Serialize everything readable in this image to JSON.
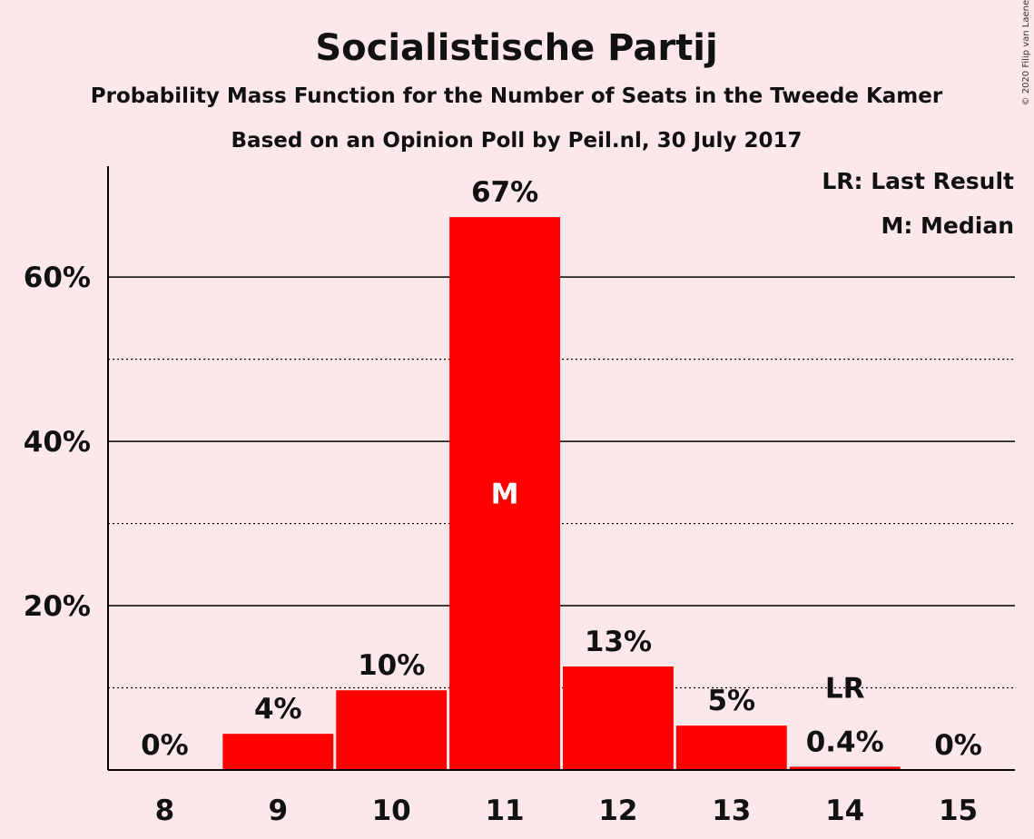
{
  "copyright": "© 2020 Filip van Laenen",
  "chart_data": {
    "type": "bar",
    "title": "Socialistische Partij",
    "subtitle": "Probability Mass Function for the Number of Seats in the Tweede Kamer",
    "subtitle2": "Based on an Opinion Poll by Peil.nl, 30 July 2017",
    "categories": [
      "8",
      "9",
      "10",
      "11",
      "12",
      "13",
      "14",
      "15"
    ],
    "values": [
      0,
      4.4,
      9.7,
      67.3,
      12.6,
      5.4,
      0.4,
      0
    ],
    "value_labels": [
      "0%",
      "4%",
      "10%",
      "67%",
      "13%",
      "5%",
      "0.4%",
      "0%"
    ],
    "ylim": [
      0,
      73.5
    ],
    "y_ticks": [
      20,
      40,
      60
    ],
    "y_tick_labels": [
      "20%",
      "40%",
      "60%"
    ],
    "y_minor_gridlines": [
      10,
      30,
      50
    ],
    "median_category": "11",
    "median_marker": "M",
    "last_result_category": "14",
    "last_result_marker": "LR",
    "legend": [
      "LR: Last Result",
      "M: Median"
    ],
    "bar_color": "#ff0000",
    "background_color": "#fce8ea",
    "legend_position": "top-right"
  }
}
